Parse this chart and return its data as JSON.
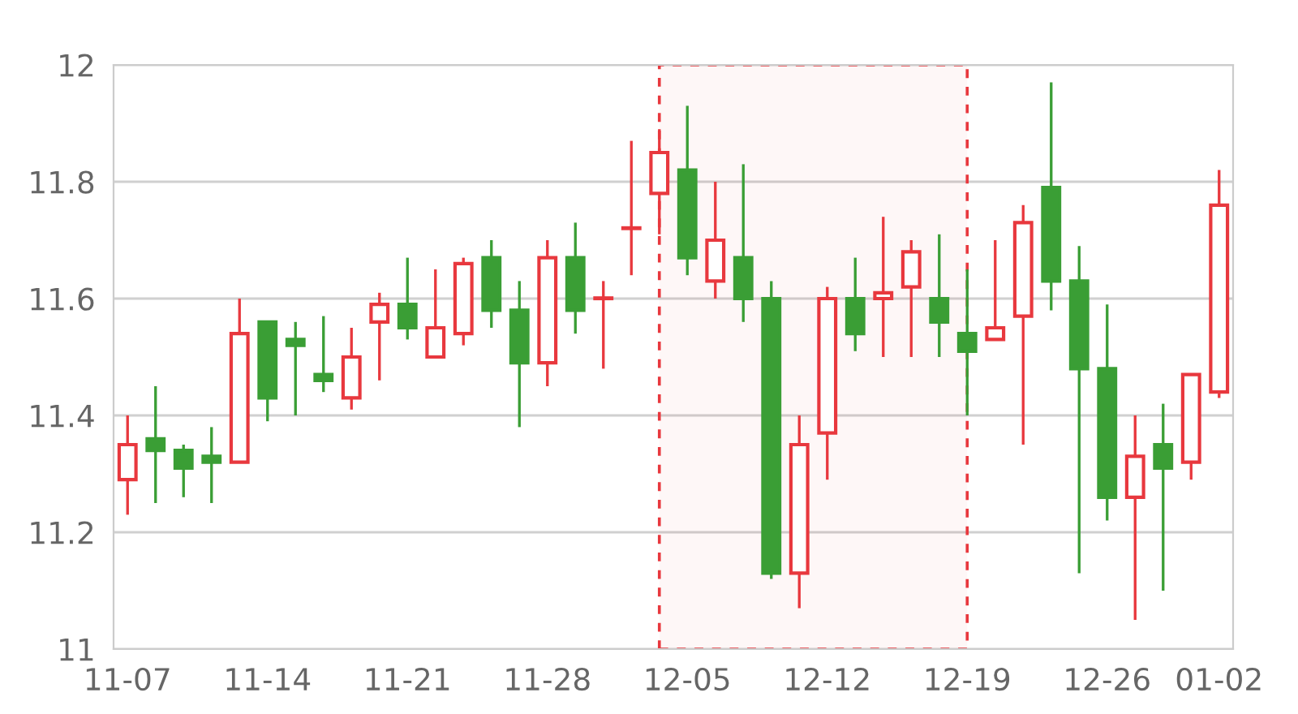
{
  "chart_data": {
    "type": "candlestick",
    "categories": [
      "11-07",
      null,
      null,
      null,
      null,
      "11-14",
      null,
      null,
      null,
      null,
      "11-21",
      null,
      null,
      null,
      null,
      "11-28",
      null,
      null,
      null,
      null,
      "12-05",
      null,
      null,
      null,
      null,
      "12-12",
      null,
      null,
      null,
      null,
      "12-19",
      null,
      null,
      null,
      null,
      "12-26",
      null,
      null,
      null,
      "01-02"
    ],
    "ohlc": [
      [
        11.29,
        11.4,
        11.23,
        11.35
      ],
      [
        11.36,
        11.45,
        11.25,
        11.34
      ],
      [
        11.34,
        11.35,
        11.26,
        11.31
      ],
      [
        11.33,
        11.38,
        11.25,
        11.32
      ],
      [
        11.32,
        11.6,
        11.32,
        11.54
      ],
      [
        11.56,
        11.56,
        11.39,
        11.43
      ],
      [
        11.53,
        11.56,
        11.4,
        11.52
      ],
      [
        11.47,
        11.57,
        11.44,
        11.46
      ],
      [
        11.43,
        11.55,
        11.41,
        11.5
      ],
      [
        11.56,
        11.61,
        11.46,
        11.59
      ],
      [
        11.59,
        11.67,
        11.53,
        11.55
      ],
      [
        11.5,
        11.65,
        11.5,
        11.55
      ],
      [
        11.54,
        11.67,
        11.52,
        11.66
      ],
      [
        11.67,
        11.7,
        11.55,
        11.58
      ],
      [
        11.58,
        11.63,
        11.38,
        11.49
      ],
      [
        11.49,
        11.7,
        11.45,
        11.67
      ],
      [
        11.67,
        11.73,
        11.54,
        11.58
      ],
      [
        11.6,
        11.63,
        11.48,
        11.6
      ],
      [
        11.72,
        11.87,
        11.64,
        11.72
      ],
      [
        11.78,
        11.89,
        11.71,
        11.85
      ],
      [
        11.82,
        11.93,
        11.64,
        11.67
      ],
      [
        11.63,
        11.8,
        11.6,
        11.7
      ],
      [
        11.67,
        11.83,
        11.56,
        11.6
      ],
      [
        11.6,
        11.63,
        11.12,
        11.13
      ],
      [
        11.13,
        11.4,
        11.07,
        11.35
      ],
      [
        11.37,
        11.62,
        11.29,
        11.6
      ],
      [
        11.6,
        11.67,
        11.51,
        11.54
      ],
      [
        11.6,
        11.74,
        11.5,
        11.61
      ],
      [
        11.62,
        11.7,
        11.5,
        11.68
      ],
      [
        11.6,
        11.71,
        11.5,
        11.56
      ],
      [
        11.54,
        11.65,
        11.4,
        11.51
      ],
      [
        11.53,
        11.7,
        11.53,
        11.55
      ],
      [
        11.57,
        11.76,
        11.35,
        11.73
      ],
      [
        11.79,
        11.97,
        11.58,
        11.63
      ],
      [
        11.63,
        11.69,
        11.13,
        11.48
      ],
      [
        11.48,
        11.59,
        11.22,
        11.26
      ],
      [
        11.26,
        11.4,
        11.05,
        11.33
      ],
      [
        11.35,
        11.42,
        11.1,
        11.31
      ],
      [
        11.32,
        11.47,
        11.29,
        11.47
      ],
      [
        11.44,
        11.82,
        11.43,
        11.76
      ]
    ],
    "colors": [
      "#e8383e",
      "#3a9e35",
      "#3a9e35",
      "#3a9e35",
      "#e8383e",
      "#3a9e35",
      "#3a9e35",
      "#3a9e35",
      "#e8383e",
      "#e8383e",
      "#3a9e35",
      "#e8383e",
      "#e8383e",
      "#3a9e35",
      "#3a9e35",
      "#e8383e",
      "#3a9e35",
      "#e8383e",
      "#e8383e",
      "#e8383e",
      "#3a9e35",
      "#e8383e",
      "#3a9e35",
      "#3a9e35",
      "#e8383e",
      "#e8383e",
      "#3a9e35",
      "#e8383e",
      "#e8383e",
      "#3a9e35",
      "#3a9e35",
      "#e8383e",
      "#e8383e",
      "#3a9e35",
      "#3a9e35",
      "#3a9e35",
      "#e8383e",
      "#3a9e35",
      "#e8383e",
      "#e8383e"
    ],
    "ylim": [
      11,
      12
    ],
    "yticks": [
      11,
      11.2,
      11.4,
      11.6,
      11.8,
      12
    ],
    "grid": "y"
  }
}
